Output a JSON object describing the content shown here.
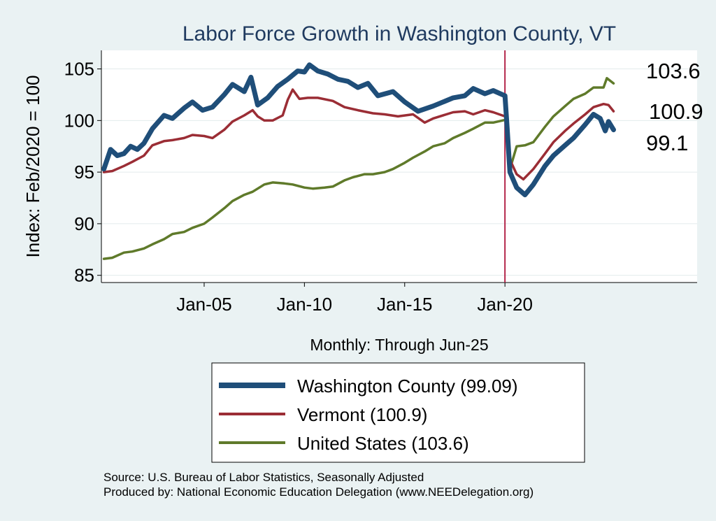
{
  "chart_data": {
    "type": "line",
    "title": "Labor Force Growth in Washington  County, VT",
    "xlabel": "Monthly: Through Jun-25",
    "ylabel": "Index: Feb/2020 = 100",
    "x_range": [
      "2000-01",
      "2025-06"
    ],
    "ylim": [
      84.3,
      106.8
    ],
    "yticks": [
      85,
      90,
      95,
      100,
      105
    ],
    "xticks": [
      "Jan-05",
      "Jan-10",
      "Jan-15",
      "Jan-20"
    ],
    "vertical_line": "Jan-20",
    "grid": true,
    "legend_position": "bottom",
    "series": [
      {
        "name": "Washington  County (99.09)",
        "end_label": "99.1",
        "color": "#1f4e79",
        "points": [
          [
            "2000-01",
            95.3
          ],
          [
            "2000-05",
            97.2
          ],
          [
            "2000-09",
            96.6
          ],
          [
            "2001-01",
            96.8
          ],
          [
            "2001-05",
            97.5
          ],
          [
            "2001-09",
            97.2
          ],
          [
            "2002-01",
            97.8
          ],
          [
            "2002-06",
            99.2
          ],
          [
            "2003-01",
            100.5
          ],
          [
            "2003-06",
            100.2
          ],
          [
            "2004-01",
            101.2
          ],
          [
            "2004-06",
            101.8
          ],
          [
            "2004-12",
            101.0
          ],
          [
            "2005-06",
            101.3
          ],
          [
            "2006-01",
            102.5
          ],
          [
            "2006-06",
            103.5
          ],
          [
            "2007-01",
            102.8
          ],
          [
            "2007-05",
            104.2
          ],
          [
            "2007-09",
            101.5
          ],
          [
            "2008-03",
            102.2
          ],
          [
            "2008-09",
            103.3
          ],
          [
            "2009-03",
            104.0
          ],
          [
            "2009-09",
            104.8
          ],
          [
            "2010-01",
            104.7
          ],
          [
            "2010-04",
            105.4
          ],
          [
            "2010-09",
            104.8
          ],
          [
            "2011-03",
            104.5
          ],
          [
            "2011-09",
            104.0
          ],
          [
            "2012-03",
            103.8
          ],
          [
            "2012-09",
            103.2
          ],
          [
            "2013-03",
            103.6
          ],
          [
            "2013-09",
            102.4
          ],
          [
            "2014-06",
            102.8
          ],
          [
            "2015-01",
            101.8
          ],
          [
            "2015-09",
            100.9
          ],
          [
            "2016-06",
            101.4
          ],
          [
            "2017-06",
            102.2
          ],
          [
            "2018-01",
            102.4
          ],
          [
            "2018-06",
            103.1
          ],
          [
            "2019-01",
            102.6
          ],
          [
            "2019-06",
            102.9
          ],
          [
            "2020-01",
            102.4
          ],
          [
            "2020-02",
            100.0
          ],
          [
            "2020-04",
            95.0
          ],
          [
            "2020-08",
            93.5
          ],
          [
            "2021-01",
            92.8
          ],
          [
            "2021-06",
            93.8
          ],
          [
            "2022-01",
            95.6
          ],
          [
            "2022-06",
            96.6
          ],
          [
            "2023-01",
            97.6
          ],
          [
            "2023-06",
            98.3
          ],
          [
            "2024-01",
            99.6
          ],
          [
            "2024-06",
            100.6
          ],
          [
            "2024-10",
            100.2
          ],
          [
            "2025-01",
            99.0
          ],
          [
            "2025-03",
            99.9
          ],
          [
            "2025-06",
            99.1
          ]
        ]
      },
      {
        "name": "Vermont (100.9)",
        "end_label": "100.9",
        "color": "#9b2d35",
        "points": [
          [
            "2000-01",
            95.0
          ],
          [
            "2000-06",
            95.1
          ],
          [
            "2001-01",
            95.6
          ],
          [
            "2001-06",
            96.0
          ],
          [
            "2002-01",
            96.6
          ],
          [
            "2002-06",
            97.6
          ],
          [
            "2003-01",
            98.0
          ],
          [
            "2003-06",
            98.1
          ],
          [
            "2004-01",
            98.3
          ],
          [
            "2004-06",
            98.6
          ],
          [
            "2005-01",
            98.5
          ],
          [
            "2005-06",
            98.3
          ],
          [
            "2006-01",
            99.1
          ],
          [
            "2006-06",
            99.9
          ],
          [
            "2007-01",
            100.5
          ],
          [
            "2007-06",
            101.0
          ],
          [
            "2007-09",
            100.4
          ],
          [
            "2008-01",
            100.0
          ],
          [
            "2008-06",
            100.0
          ],
          [
            "2008-12",
            100.5
          ],
          [
            "2009-03",
            102.0
          ],
          [
            "2009-06",
            103.0
          ],
          [
            "2009-10",
            102.1
          ],
          [
            "2010-03",
            102.2
          ],
          [
            "2010-09",
            102.2
          ],
          [
            "2011-06",
            101.9
          ],
          [
            "2012-01",
            101.3
          ],
          [
            "2012-09",
            101.0
          ],
          [
            "2013-06",
            100.7
          ],
          [
            "2014-01",
            100.6
          ],
          [
            "2014-09",
            100.4
          ],
          [
            "2015-06",
            100.6
          ],
          [
            "2016-01",
            99.8
          ],
          [
            "2016-06",
            100.2
          ],
          [
            "2017-06",
            100.8
          ],
          [
            "2018-01",
            100.9
          ],
          [
            "2018-06",
            100.6
          ],
          [
            "2019-01",
            101.0
          ],
          [
            "2019-06",
            100.8
          ],
          [
            "2020-01",
            100.4
          ],
          [
            "2020-02",
            100.0
          ],
          [
            "2020-04",
            96.2
          ],
          [
            "2020-08",
            94.8
          ],
          [
            "2020-12",
            94.3
          ],
          [
            "2021-06",
            95.3
          ],
          [
            "2022-01",
            96.8
          ],
          [
            "2022-06",
            97.9
          ],
          [
            "2023-01",
            99.0
          ],
          [
            "2023-06",
            99.7
          ],
          [
            "2024-01",
            100.6
          ],
          [
            "2024-06",
            101.3
          ],
          [
            "2024-12",
            101.6
          ],
          [
            "2025-03",
            101.5
          ],
          [
            "2025-06",
            100.9
          ]
        ]
      },
      {
        "name": "United States (103.6)",
        "end_label": "103.6",
        "color": "#5f7a2a",
        "points": [
          [
            "2000-01",
            86.6
          ],
          [
            "2000-06",
            86.7
          ],
          [
            "2001-01",
            87.2
          ],
          [
            "2001-06",
            87.3
          ],
          [
            "2002-01",
            87.6
          ],
          [
            "2002-06",
            88.0
          ],
          [
            "2003-01",
            88.5
          ],
          [
            "2003-06",
            89.0
          ],
          [
            "2004-01",
            89.2
          ],
          [
            "2004-06",
            89.6
          ],
          [
            "2005-01",
            90.0
          ],
          [
            "2005-06",
            90.6
          ],
          [
            "2006-01",
            91.5
          ],
          [
            "2006-06",
            92.2
          ],
          [
            "2007-01",
            92.8
          ],
          [
            "2007-06",
            93.1
          ],
          [
            "2008-01",
            93.8
          ],
          [
            "2008-06",
            94.0
          ],
          [
            "2009-01",
            93.9
          ],
          [
            "2009-06",
            93.8
          ],
          [
            "2010-01",
            93.5
          ],
          [
            "2010-06",
            93.4
          ],
          [
            "2011-01",
            93.5
          ],
          [
            "2011-06",
            93.6
          ],
          [
            "2012-01",
            94.2
          ],
          [
            "2012-06",
            94.5
          ],
          [
            "2013-01",
            94.8
          ],
          [
            "2013-06",
            94.8
          ],
          [
            "2014-01",
            95.0
          ],
          [
            "2014-06",
            95.3
          ],
          [
            "2015-01",
            95.9
          ],
          [
            "2015-06",
            96.4
          ],
          [
            "2016-01",
            97.0
          ],
          [
            "2016-06",
            97.5
          ],
          [
            "2017-01",
            97.8
          ],
          [
            "2017-06",
            98.3
          ],
          [
            "2018-01",
            98.8
          ],
          [
            "2018-06",
            99.2
          ],
          [
            "2019-01",
            99.8
          ],
          [
            "2019-06",
            99.8
          ],
          [
            "2020-02",
            100.1
          ],
          [
            "2020-04",
            95.3
          ],
          [
            "2020-08",
            97.5
          ],
          [
            "2021-01",
            97.6
          ],
          [
            "2021-06",
            97.9
          ],
          [
            "2022-01",
            99.4
          ],
          [
            "2022-06",
            100.4
          ],
          [
            "2023-01",
            101.4
          ],
          [
            "2023-06",
            102.1
          ],
          [
            "2024-01",
            102.6
          ],
          [
            "2024-06",
            103.2
          ],
          [
            "2024-12",
            103.2
          ],
          [
            "2025-02",
            104.1
          ],
          [
            "2025-06",
            103.6
          ]
        ]
      }
    ]
  },
  "source_lines": [
    "Source: U.S. Bureau of Labor Statistics, Seasonally Adjusted",
    "Produced by: National Economic Education Delegation (www.NEEDelegation.org)"
  ]
}
